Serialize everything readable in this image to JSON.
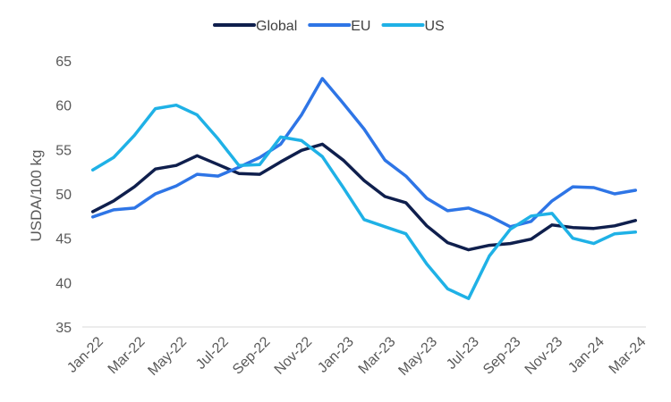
{
  "chart_data": {
    "type": "line",
    "title": "",
    "xlabel": "",
    "ylabel": "USDA/100 kg",
    "ylim": [
      35,
      65
    ],
    "yticks": [
      35,
      40,
      45,
      50,
      55,
      60,
      65
    ],
    "grid": false,
    "legend_position": "top-center",
    "x": [
      "Jan-22",
      "Feb-22",
      "Mar-22",
      "Apr-22",
      "May-22",
      "Jun-22",
      "Jul-22",
      "Aug-22",
      "Sep-22",
      "Oct-22",
      "Nov-22",
      "Dec-22",
      "Jan-23",
      "Feb-23",
      "Mar-23",
      "Apr-23",
      "May-23",
      "Jun-23",
      "Jul-23",
      "Aug-23",
      "Sep-23",
      "Oct-23",
      "Nov-23",
      "Dec-23",
      "Jan-24",
      "Feb-24",
      "Mar-24"
    ],
    "x_tick_labels": [
      "Jan-22",
      "Mar-22",
      "May-22",
      "Jul-22",
      "Sep-22",
      "Nov-22",
      "Jan-23",
      "Mar-23",
      "May-23",
      "Jul-23",
      "Sep-23",
      "Nov-23",
      "Jan-24",
      "Mar-24"
    ],
    "series": [
      {
        "name": "Global",
        "color": "#0f1f4d",
        "values": [
          48.0,
          49.2,
          50.8,
          52.8,
          53.2,
          54.3,
          53.3,
          52.3,
          52.2,
          53.6,
          54.9,
          55.6,
          53.8,
          51.5,
          49.7,
          49.0,
          46.4,
          44.5,
          43.7,
          44.2,
          44.4,
          44.9,
          46.5,
          46.2,
          46.1,
          46.4,
          47.0
        ]
      },
      {
        "name": "EU",
        "color": "#2e75e6",
        "values": [
          47.4,
          48.2,
          48.4,
          50.0,
          50.9,
          52.2,
          52.0,
          53.0,
          54.1,
          55.6,
          58.9,
          63.0,
          60.2,
          57.3,
          53.8,
          52.0,
          49.5,
          48.1,
          48.4,
          47.5,
          46.3,
          46.9,
          49.2,
          50.8,
          50.7,
          50.0,
          50.4
        ]
      },
      {
        "name": "US",
        "color": "#1fb1e6",
        "values": [
          52.7,
          54.1,
          56.6,
          59.6,
          60.0,
          58.9,
          56.2,
          53.2,
          53.3,
          56.4,
          56.0,
          54.2,
          50.7,
          47.1,
          46.3,
          45.5,
          42.1,
          39.3,
          38.2,
          43.0,
          46.0,
          47.5,
          47.8,
          45.0,
          44.4,
          45.5,
          45.7
        ]
      }
    ]
  }
}
